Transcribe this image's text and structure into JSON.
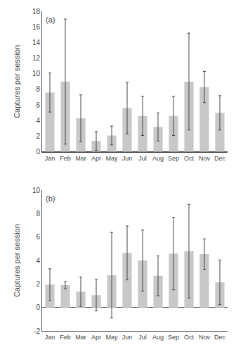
{
  "chart_data": [
    {
      "type": "bar",
      "categories": [
        "Jan",
        "Feb",
        "Mar",
        "Apr",
        "May",
        "Jun",
        "Jul",
        "Aug",
        "Sep",
        "Oct",
        "Nov",
        "Dec"
      ],
      "values": [
        7.6,
        9.0,
        4.3,
        1.4,
        2.1,
        5.6,
        4.6,
        3.2,
        4.6,
        9.0,
        8.3,
        5.0
      ],
      "errors": [
        2.5,
        8.0,
        3.0,
        1.2,
        1.2,
        3.3,
        2.5,
        1.8,
        2.5,
        6.2,
        2.0,
        2.2
      ],
      "ylim": [
        0,
        18
      ],
      "yticks": [
        0,
        2,
        4,
        6,
        8,
        10,
        12,
        14,
        16,
        18
      ],
      "ylabel": "Captures per session",
      "annotations": [
        "(a)"
      ],
      "color": "#c8c8c8",
      "grid": false
    },
    {
      "type": "bar",
      "categories": [
        "Jan",
        "Feb",
        "Mar",
        "Apr",
        "May",
        "Jun",
        "Jul",
        "Aug",
        "Sep",
        "Oct",
        "Nov",
        "Dec"
      ],
      "values": [
        1.95,
        1.9,
        1.35,
        1.05,
        2.75,
        4.65,
        4.0,
        2.7,
        4.6,
        4.8,
        4.55,
        2.15
      ],
      "errors": [
        1.35,
        0.3,
        1.25,
        1.35,
        3.65,
        2.3,
        2.6,
        1.7,
        3.1,
        4.0,
        1.3,
        1.9
      ],
      "ylim": [
        -2,
        10
      ],
      "yticks": [
        -2,
        0,
        2,
        4,
        6,
        8,
        10
      ],
      "ylabel": "Captures per session",
      "annotations": [
        "(b)"
      ],
      "color": "#c8c8c8",
      "grid": false
    }
  ]
}
